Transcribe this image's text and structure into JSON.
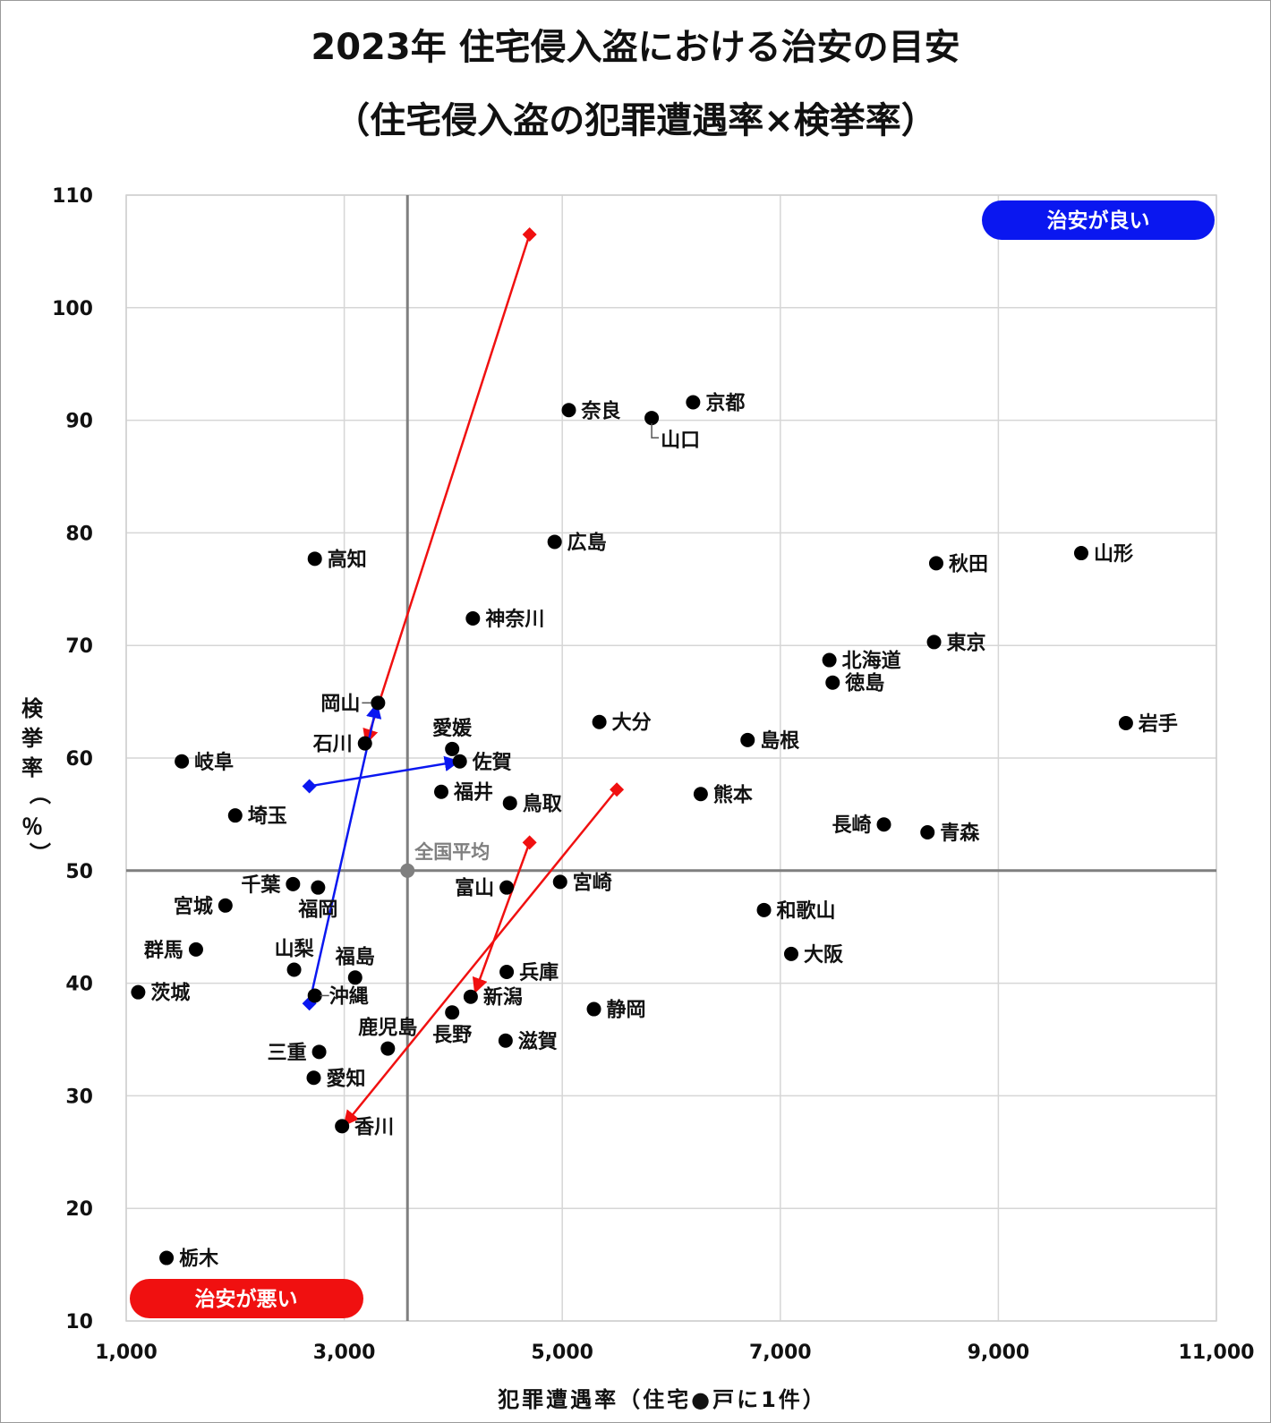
{
  "title_line1": "2023年 住宅侵入盗における治安の目安",
  "title_line2": "（住宅侵入盗の犯罪遭遇率×検挙率）",
  "badges": {
    "good": {
      "label": "治安が良い",
      "color": "#0a17f0"
    },
    "bad": {
      "label": "治安が悪い",
      "color": "#f01010"
    }
  },
  "chart_data": {
    "type": "scatter",
    "xlabel": "犯罪遭遇率（住宅●戸に1件）",
    "ylabel_chars": [
      "検",
      "挙",
      "率",
      "（",
      "％",
      "）"
    ],
    "xlim": [
      1000,
      11000
    ],
    "ylim": [
      10,
      110
    ],
    "x_ticks": [
      {
        "v": 1000,
        "label": "1,000"
      },
      {
        "v": 3000,
        "label": "3,000"
      },
      {
        "v": 5000,
        "label": "5,000"
      },
      {
        "v": 7000,
        "label": "7,000"
      },
      {
        "v": 9000,
        "label": "9,000"
      },
      {
        "v": 11000,
        "label": "11,000"
      }
    ],
    "y_ticks": [
      {
        "v": 10,
        "label": "10"
      },
      {
        "v": 20,
        "label": "20"
      },
      {
        "v": 30,
        "label": "30"
      },
      {
        "v": 40,
        "label": "40"
      },
      {
        "v": 50,
        "label": "50"
      },
      {
        "v": 60,
        "label": "60"
      },
      {
        "v": 70,
        "label": "70"
      },
      {
        "v": 80,
        "label": "80"
      },
      {
        "v": 90,
        "label": "90"
      },
      {
        "v": 100,
        "label": "100"
      },
      {
        "v": 110,
        "label": "110"
      }
    ],
    "grid": true,
    "average": {
      "x": 3580,
      "y": 50,
      "label": "全国平均",
      "color": "#7f7f7f"
    },
    "points": [
      {
        "name": "京都",
        "x": 6200,
        "y": 91.6,
        "pos": "r"
      },
      {
        "name": "奈良",
        "x": 5060,
        "y": 90.9,
        "pos": "r"
      },
      {
        "name": "山口",
        "x": 5820,
        "y": 90.2,
        "pos": "leader"
      },
      {
        "name": "広島",
        "x": 4930,
        "y": 79.2,
        "pos": "r"
      },
      {
        "name": "高知",
        "x": 2730,
        "y": 77.7,
        "pos": "r"
      },
      {
        "name": "山形",
        "x": 9760,
        "y": 78.2,
        "pos": "r"
      },
      {
        "name": "秋田",
        "x": 8430,
        "y": 77.3,
        "pos": "r"
      },
      {
        "name": "神奈川",
        "x": 4180,
        "y": 72.4,
        "pos": "r"
      },
      {
        "name": "東京",
        "x": 8410,
        "y": 70.3,
        "pos": "r"
      },
      {
        "name": "北海道",
        "x": 7450,
        "y": 68.7,
        "pos": "r"
      },
      {
        "name": "徳島",
        "x": 7480,
        "y": 66.7,
        "pos": "r"
      },
      {
        "name": "岡山",
        "x": 3310,
        "y": 64.9,
        "pos": "lleader",
        "color": "#0a17f0"
      },
      {
        "name": "大分",
        "x": 5340,
        "y": 63.2,
        "pos": "r"
      },
      {
        "name": "岩手",
        "x": 10170,
        "y": 63.1,
        "pos": "r"
      },
      {
        "name": "石川",
        "x": 3190,
        "y": 61.3,
        "pos": "l",
        "color": "#f01010"
      },
      {
        "name": "島根",
        "x": 6700,
        "y": 61.6,
        "pos": "r"
      },
      {
        "name": "愛媛",
        "x": 3990,
        "y": 60.8,
        "pos": "t"
      },
      {
        "name": "岐阜",
        "x": 1510,
        "y": 59.7,
        "pos": "r"
      },
      {
        "name": "佐賀",
        "x": 4060,
        "y": 59.7,
        "pos": "r",
        "color": "#0a17f0"
      },
      {
        "name": "福井",
        "x": 3890,
        "y": 57.0,
        "pos": "r"
      },
      {
        "name": "熊本",
        "x": 6270,
        "y": 56.8,
        "pos": "r"
      },
      {
        "name": "鳥取",
        "x": 4520,
        "y": 56.0,
        "pos": "r"
      },
      {
        "name": "埼玉",
        "x": 2000,
        "y": 54.9,
        "pos": "r"
      },
      {
        "name": "長崎",
        "x": 7950,
        "y": 54.1,
        "pos": "l"
      },
      {
        "name": "青森",
        "x": 8350,
        "y": 53.4,
        "pos": "r"
      },
      {
        "name": "千葉",
        "x": 2530,
        "y": 48.8,
        "pos": "l"
      },
      {
        "name": "福岡",
        "x": 2760,
        "y": 48.5,
        "pos": "b"
      },
      {
        "name": "宮崎",
        "x": 4980,
        "y": 49.0,
        "pos": "r"
      },
      {
        "name": "富山",
        "x": 4490,
        "y": 48.5,
        "pos": "l"
      },
      {
        "name": "宮城",
        "x": 1910,
        "y": 46.9,
        "pos": "l"
      },
      {
        "name": "和歌山",
        "x": 6850,
        "y": 46.5,
        "pos": "r"
      },
      {
        "name": "群馬",
        "x": 1640,
        "y": 43.0,
        "pos": "l"
      },
      {
        "name": "大阪",
        "x": 7100,
        "y": 42.6,
        "pos": "r"
      },
      {
        "name": "山梨",
        "x": 2540,
        "y": 41.2,
        "pos": "t"
      },
      {
        "name": "兵庫",
        "x": 4490,
        "y": 41.0,
        "pos": "r"
      },
      {
        "name": "福島",
        "x": 3100,
        "y": 40.5,
        "pos": "t"
      },
      {
        "name": "茨城",
        "x": 1110,
        "y": 39.2,
        "pos": "r"
      },
      {
        "name": "沖縄",
        "x": 2730,
        "y": 38.9,
        "pos": "rleader"
      },
      {
        "name": "新潟",
        "x": 4160,
        "y": 38.8,
        "pos": "r",
        "color": "#f01010"
      },
      {
        "name": "静岡",
        "x": 5290,
        "y": 37.7,
        "pos": "r"
      },
      {
        "name": "長野",
        "x": 3990,
        "y": 37.4,
        "pos": "b"
      },
      {
        "name": "滋賀",
        "x": 4480,
        "y": 34.9,
        "pos": "r"
      },
      {
        "name": "鹿児島",
        "x": 3400,
        "y": 34.2,
        "pos": "t"
      },
      {
        "name": "三重",
        "x": 2770,
        "y": 33.9,
        "pos": "l"
      },
      {
        "name": "愛知",
        "x": 2720,
        "y": 31.6,
        "pos": "r"
      },
      {
        "name": "香川",
        "x": 2980,
        "y": 27.3,
        "pos": "r",
        "color": "#f01010"
      },
      {
        "name": "栃木",
        "x": 1370,
        "y": 15.6,
        "pos": "r"
      }
    ],
    "arrows": [
      {
        "from": [
          4700,
          106.5
        ],
        "to": [
          3200,
          61.3
        ],
        "color": "#f01010"
      },
      {
        "from": [
          5500,
          57.2
        ],
        "to": [
          3000,
          27.4
        ],
        "color": "#f01010"
      },
      {
        "from": [
          4700,
          52.5
        ],
        "to": [
          4200,
          39.2
        ],
        "color": "#f01010"
      },
      {
        "from": [
          2680,
          57.5
        ],
        "to": [
          4050,
          59.7
        ],
        "color": "#0a17f0"
      },
      {
        "from": [
          2680,
          38.2
        ],
        "to": [
          3300,
          64.8
        ],
        "color": "#0a17f0"
      }
    ]
  }
}
